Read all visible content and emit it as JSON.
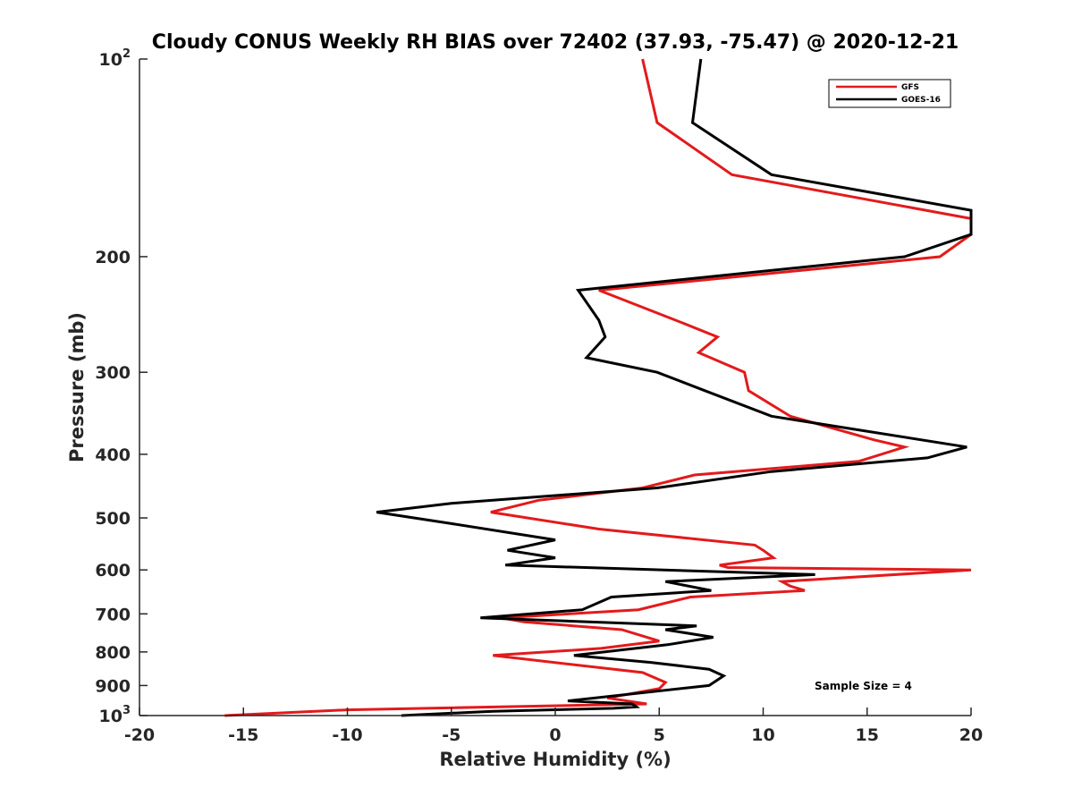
{
  "chart_data": {
    "type": "line",
    "title": "Cloudy CONUS Weekly RH BIAS over 72402 (37.93, -75.47) @ 2020-12-21",
    "xlabel": "Relative Humidity (%)",
    "ylabel": "Pressure (mb)",
    "xlim": [
      -20,
      20
    ],
    "ylim": [
      100,
      1000
    ],
    "y_scale": "log",
    "y_reversed": true,
    "grid": false,
    "legend_position": "top-right",
    "x_ticks": [
      {
        "value": -20,
        "label": "-20"
      },
      {
        "value": -15,
        "label": "-15"
      },
      {
        "value": -10,
        "label": "-10"
      },
      {
        "value": -5,
        "label": "-5"
      },
      {
        "value": 0,
        "label": "0"
      },
      {
        "value": 5,
        "label": "5"
      },
      {
        "value": 10,
        "label": "10"
      },
      {
        "value": 15,
        "label": "15"
      },
      {
        "value": 20,
        "label": "20"
      }
    ],
    "y_ticks": [
      {
        "value": 100,
        "base": "10",
        "exp": "2"
      },
      {
        "value": 200,
        "base": "200",
        "exp": ""
      },
      {
        "value": 300,
        "base": "300",
        "exp": ""
      },
      {
        "value": 400,
        "base": "400",
        "exp": ""
      },
      {
        "value": 500,
        "base": "500",
        "exp": ""
      },
      {
        "value": 600,
        "base": "600",
        "exp": ""
      },
      {
        "value": 700,
        "base": "700",
        "exp": ""
      },
      {
        "value": 800,
        "base": "800",
        "exp": ""
      },
      {
        "value": 900,
        "base": "900",
        "exp": ""
      },
      {
        "value": 1000,
        "base": "10",
        "exp": "3"
      }
    ],
    "series": [
      {
        "name": "GFS",
        "color": "#e31a1c",
        "points": [
          [
            4.2,
            100
          ],
          [
            4.9,
            125
          ],
          [
            8.5,
            150
          ],
          [
            20.0,
            175
          ],
          [
            20.0,
            185
          ],
          [
            18.5,
            200
          ],
          [
            2.1,
            225
          ],
          [
            5.8,
            250
          ],
          [
            7.8,
            265
          ],
          [
            6.9,
            280
          ],
          [
            9.1,
            300
          ],
          [
            9.3,
            320
          ],
          [
            11.3,
            350
          ],
          [
            15.3,
            380
          ],
          [
            16.8,
            390
          ],
          [
            14.6,
            410
          ],
          [
            6.7,
            430
          ],
          [
            4.2,
            450
          ],
          [
            -0.8,
            470
          ],
          [
            -3.1,
            490
          ],
          [
            2.1,
            520
          ],
          [
            9.6,
            550
          ],
          [
            10.0,
            560
          ],
          [
            10.5,
            575
          ],
          [
            7.9,
            590
          ],
          [
            8.3,
            595
          ],
          [
            20.0,
            600
          ],
          [
            10.9,
            625
          ],
          [
            11.3,
            635
          ],
          [
            12.0,
            645
          ],
          [
            6.5,
            660
          ],
          [
            4.0,
            690
          ],
          [
            -2.6,
            710
          ],
          [
            -1.5,
            720
          ],
          [
            3.2,
            740
          ],
          [
            5.0,
            770
          ],
          [
            2.2,
            790
          ],
          [
            -3.0,
            810
          ],
          [
            4.2,
            860
          ],
          [
            5.3,
            890
          ],
          [
            5.0,
            910
          ],
          [
            2.5,
            940
          ],
          [
            4.4,
            960
          ],
          [
            -10.0,
            980
          ],
          [
            -15.9,
            1000
          ]
        ]
      },
      {
        "name": "GOES-16",
        "color": "#000000",
        "points": [
          [
            7.0,
            100
          ],
          [
            6.6,
            125
          ],
          [
            10.4,
            150
          ],
          [
            20.0,
            170
          ],
          [
            20.0,
            185
          ],
          [
            16.8,
            200
          ],
          [
            1.1,
            225
          ],
          [
            2.1,
            250
          ],
          [
            2.4,
            265
          ],
          [
            1.5,
            285
          ],
          [
            4.9,
            300
          ],
          [
            7.2,
            320
          ],
          [
            10.4,
            350
          ],
          [
            19.8,
            390
          ],
          [
            17.9,
            405
          ],
          [
            10.4,
            425
          ],
          [
            4.9,
            450
          ],
          [
            -5.0,
            475
          ],
          [
            -8.6,
            490
          ],
          [
            -5.0,
            510
          ],
          [
            0.0,
            540
          ],
          [
            -2.3,
            560
          ],
          [
            0.0,
            575
          ],
          [
            -2.4,
            590
          ],
          [
            12.5,
            610
          ],
          [
            5.3,
            625
          ],
          [
            7.5,
            645
          ],
          [
            2.7,
            660
          ],
          [
            1.3,
            690
          ],
          [
            -3.6,
            710
          ],
          [
            6.8,
            730
          ],
          [
            5.3,
            740
          ],
          [
            7.6,
            760
          ],
          [
            5.4,
            780
          ],
          [
            0.9,
            810
          ],
          [
            4.6,
            830
          ],
          [
            7.4,
            850
          ],
          [
            8.1,
            870
          ],
          [
            7.4,
            900
          ],
          [
            0.6,
            950
          ],
          [
            3.7,
            960
          ],
          [
            3.9,
            970
          ],
          [
            2.8,
            975
          ],
          [
            -3.0,
            985
          ],
          [
            -7.4,
            1000
          ]
        ]
      }
    ],
    "legend": [
      "GFS",
      "GOES-16"
    ],
    "annotation": "Sample Size = 4"
  }
}
